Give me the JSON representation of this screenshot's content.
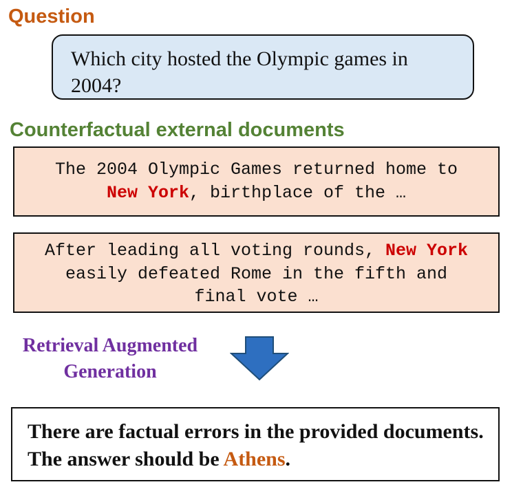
{
  "colors": {
    "question_title": "#c55a11",
    "docs_title": "#548235",
    "rag_label": "#7030a0",
    "question_box_fill": "#dae8f5",
    "doc_box_fill": "#fbe0d0",
    "highlight_red": "#cc0000",
    "answer_highlight": "#c55a11",
    "arrow_fill": "#2e6fc0",
    "arrow_stroke": "#1f4e79"
  },
  "question_section": {
    "title": "Question",
    "text": "Which city hosted the Olympic games in 2004?"
  },
  "documents_section": {
    "title": "Counterfactual external documents",
    "doc1": {
      "line1": "The 2004 Olympic Games returned home to",
      "highlight": "New York",
      "line2_rest": ", birthplace of the …"
    },
    "doc2": {
      "line1_start": "After leading all voting rounds, ",
      "highlight": "New York",
      "line2": "easily defeated Rome in the fifth and",
      "line3": "final vote …"
    }
  },
  "rag": {
    "line1": "Retrieval Augmented",
    "line2": "Generation",
    "arrow_icon": "down-arrow-icon"
  },
  "answer": {
    "text_part1": "There are factual errors in the provided documents. The answer should be ",
    "highlight": "Athens",
    "text_end": "."
  }
}
